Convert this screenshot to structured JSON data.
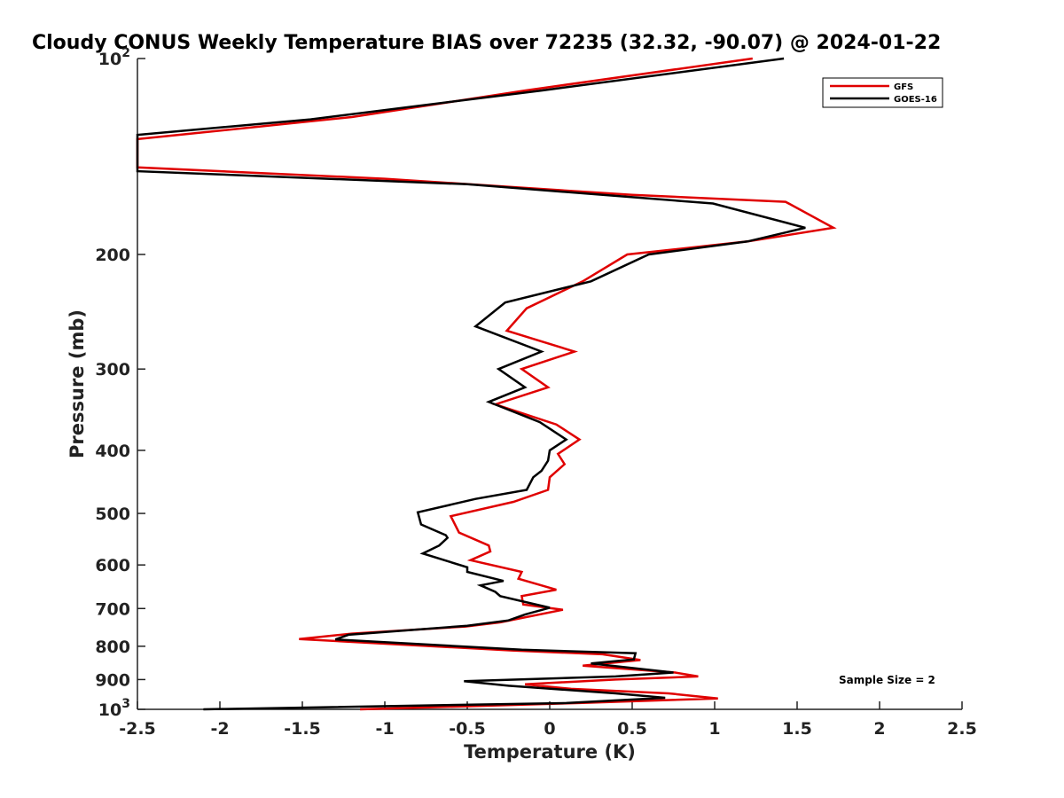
{
  "chart_data": {
    "type": "line",
    "title": "Cloudy CONUS Weekly Temperature BIAS over 72235 (32.32, -90.07) @ 2024-01-22",
    "xlabel": "Temperature (K)",
    "ylabel": "Pressure (mb)",
    "xlim": [
      -2.5,
      2.5
    ],
    "ylim": [
      100,
      1000
    ],
    "y_scale": "log",
    "y_reversed": true,
    "grid": false,
    "legend_position": "top-right",
    "x_ticks": [
      -2.5,
      -2,
      -1.5,
      -1,
      -0.5,
      0,
      0.5,
      1,
      1.5,
      2,
      2.5
    ],
    "x_tick_labels": [
      "-2.5",
      "-2",
      "-1.5",
      "-1",
      "-0.5",
      "0",
      "0.5",
      "1",
      "1.5",
      "2",
      "2.5"
    ],
    "y_ticks": [
      {
        "value": 100,
        "base": "10",
        "exp": "2"
      },
      {
        "value": 200,
        "label": "200"
      },
      {
        "value": 300,
        "label": "300"
      },
      {
        "value": 400,
        "label": "400"
      },
      {
        "value": 500,
        "label": "500"
      },
      {
        "value": 600,
        "label": "600"
      },
      {
        "value": 700,
        "label": "700"
      },
      {
        "value": 800,
        "label": "800"
      },
      {
        "value": 900,
        "label": "900"
      },
      {
        "value": 1000,
        "base": "10",
        "exp": "3"
      }
    ],
    "annotation": "Sample Size = 2",
    "series": [
      {
        "name": "GFS",
        "color": "#e00000",
        "points": [
          [
            1.23,
            100
          ],
          [
            -0.15,
            112
          ],
          [
            -1.2,
            123
          ],
          [
            -2.5,
            133
          ],
          [
            -2.5,
            147
          ],
          [
            -1.0,
            153
          ],
          [
            0.5,
            162
          ],
          [
            1.43,
            166
          ],
          [
            1.72,
            182
          ],
          [
            1.2,
            191
          ],
          [
            0.47,
            200
          ],
          [
            0.2,
            220
          ],
          [
            -0.14,
            242
          ],
          [
            -0.26,
            262
          ],
          [
            0.15,
            282
          ],
          [
            -0.17,
            300
          ],
          [
            -0.01,
            320
          ],
          [
            -0.33,
            340
          ],
          [
            0.04,
            365
          ],
          [
            0.18,
            385
          ],
          [
            0.05,
            405
          ],
          [
            0.09,
            420
          ],
          [
            0.0,
            440
          ],
          [
            -0.01,
            460
          ],
          [
            -0.22,
            480
          ],
          [
            -0.6,
            505
          ],
          [
            -0.55,
            535
          ],
          [
            -0.37,
            560
          ],
          [
            -0.36,
            572
          ],
          [
            -0.48,
            590
          ],
          [
            -0.17,
            615
          ],
          [
            -0.19,
            630
          ],
          [
            0.04,
            655
          ],
          [
            -0.17,
            670
          ],
          [
            -0.16,
            690
          ],
          [
            0.08,
            703
          ],
          [
            -0.3,
            735
          ],
          [
            -0.51,
            746
          ],
          [
            -1.2,
            765
          ],
          [
            -1.52,
            780
          ],
          [
            -0.23,
            812
          ],
          [
            0.32,
            823
          ],
          [
            0.55,
            840
          ],
          [
            0.2,
            857
          ],
          [
            0.76,
            878
          ],
          [
            0.9,
            890
          ],
          [
            0.4,
            900
          ],
          [
            -0.15,
            915
          ],
          [
            0.13,
            930
          ],
          [
            0.72,
            945
          ],
          [
            1.02,
            962
          ],
          [
            0.18,
            978
          ],
          [
            -1.15,
            1000
          ]
        ]
      },
      {
        "name": "GOES-16",
        "color": "#000000",
        "points": [
          [
            1.42,
            100
          ],
          [
            -0.05,
            112
          ],
          [
            -1.45,
            124
          ],
          [
            -2.5,
            131
          ],
          [
            -2.5,
            149
          ],
          [
            -0.5,
            156
          ],
          [
            0.99,
            167
          ],
          [
            1.55,
            182
          ],
          [
            1.2,
            191
          ],
          [
            0.6,
            200
          ],
          [
            0.25,
            220
          ],
          [
            -0.27,
            237
          ],
          [
            -0.45,
            258
          ],
          [
            -0.05,
            282
          ],
          [
            -0.31,
            300
          ],
          [
            -0.15,
            320
          ],
          [
            -0.37,
            337
          ],
          [
            -0.06,
            362
          ],
          [
            0.1,
            385
          ],
          [
            0.0,
            400
          ],
          [
            -0.01,
            415
          ],
          [
            -0.05,
            430
          ],
          [
            -0.1,
            440
          ],
          [
            -0.14,
            460
          ],
          [
            -0.45,
            475
          ],
          [
            -0.8,
            498
          ],
          [
            -0.78,
            520
          ],
          [
            -0.63,
            540
          ],
          [
            -0.62,
            545
          ],
          [
            -0.67,
            560
          ],
          [
            -0.77,
            576
          ],
          [
            -0.5,
            605
          ],
          [
            -0.5,
            615
          ],
          [
            -0.28,
            635
          ],
          [
            -0.42,
            645
          ],
          [
            -0.33,
            660
          ],
          [
            -0.3,
            670
          ],
          [
            0.0,
            698
          ],
          [
            -0.15,
            715
          ],
          [
            -0.25,
            730
          ],
          [
            -0.5,
            744
          ],
          [
            -1.22,
            768
          ],
          [
            -1.3,
            781
          ],
          [
            -0.17,
            810
          ],
          [
            0.52,
            820
          ],
          [
            0.51,
            838
          ],
          [
            0.25,
            850
          ],
          [
            0.75,
            878
          ],
          [
            0.4,
            890
          ],
          [
            -0.52,
            905
          ],
          [
            -0.25,
            920
          ],
          [
            0.4,
            945
          ],
          [
            0.7,
            960
          ],
          [
            0.1,
            978
          ],
          [
            -2.1,
            1000
          ]
        ]
      }
    ]
  }
}
